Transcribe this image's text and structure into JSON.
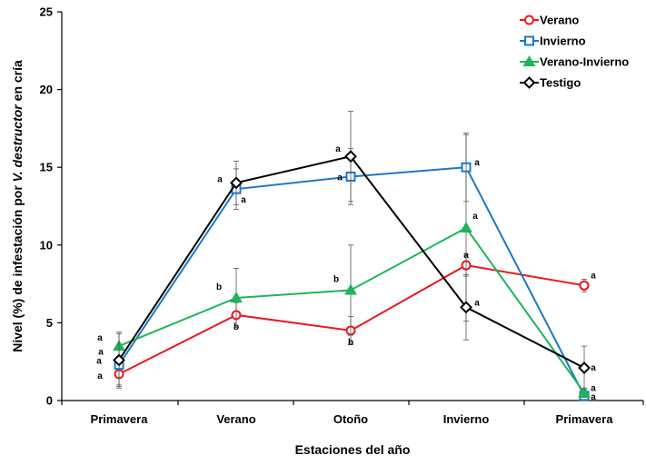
{
  "chart_data": {
    "type": "line",
    "title": "",
    "xlabel": "Estaciones del año",
    "ylabel_parts": [
      "Nivel (%) de infestación por ",
      "V. destructor",
      " en cría"
    ],
    "ylim": [
      0,
      25
    ],
    "y_ticks": [
      0,
      5,
      10,
      15,
      20,
      25
    ],
    "categories": [
      "Primavera",
      "Verano",
      "Otoño",
      "Invierno",
      "Primavera"
    ],
    "legend_position": "top-right",
    "series": [
      {
        "name": "Verano",
        "color": "#e8191e",
        "marker": "circle",
        "values": [
          1.7,
          5.5,
          4.5,
          8.7,
          7.4
        ],
        "errors": [
          0.9,
          0.8,
          0.9,
          0.7,
          0.4
        ],
        "labels": [
          "a",
          "b",
          "b",
          "a",
          "a"
        ]
      },
      {
        "name": "Invierno",
        "color": "#1f77c4",
        "marker": "square",
        "values": [
          2.3,
          13.6,
          14.4,
          15.0,
          0.3
        ],
        "errors": [
          1.3,
          1.3,
          1.8,
          2.2,
          0.2
        ],
        "labels": [
          "a",
          "a",
          "a",
          "a",
          "a"
        ]
      },
      {
        "name": "Verano-Invierno",
        "color": "#1fb35a",
        "marker": "triangle",
        "values": [
          3.5,
          6.6,
          7.1,
          11.1,
          0.5
        ],
        "errors": [
          0.9,
          1.9,
          2.9,
          6.0,
          0.3
        ],
        "labels": [
          "a",
          "b",
          "b",
          "a",
          "a"
        ]
      },
      {
        "name": "Testigo",
        "color": "#000000",
        "marker": "diamond",
        "values": [
          2.6,
          14.0,
          15.7,
          6.0,
          2.1
        ],
        "errors": [
          1.7,
          1.4,
          2.9,
          2.1,
          1.4
        ],
        "labels": [
          "a",
          "a",
          "a",
          "a",
          "a"
        ]
      }
    ]
  }
}
